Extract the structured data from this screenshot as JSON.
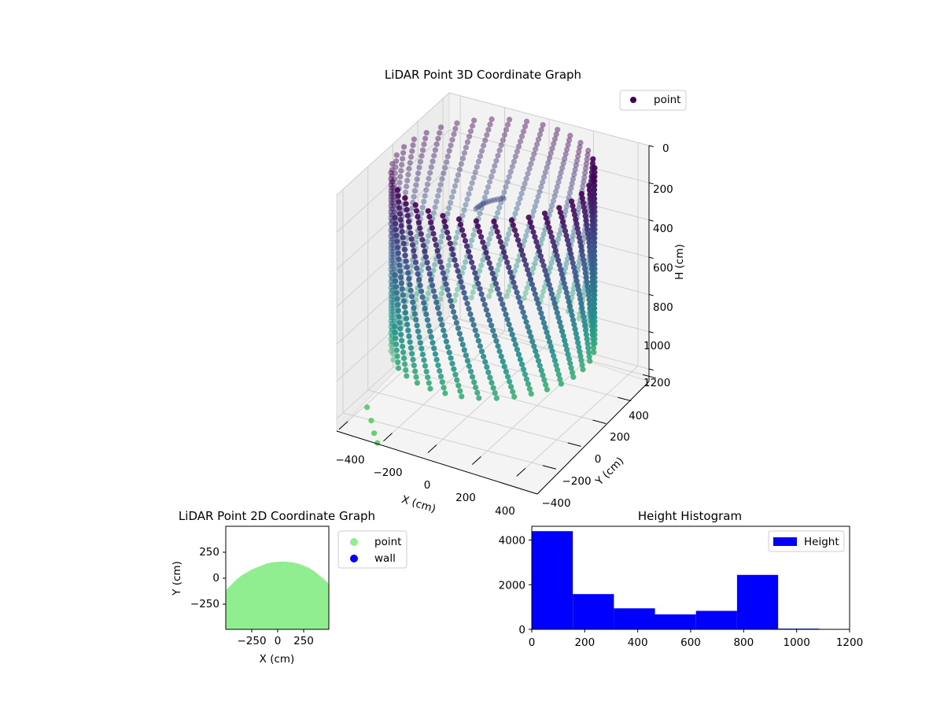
{
  "chart_data": [
    {
      "type": "scatter3d",
      "title": "LiDAR Point 3D Coordinate Graph",
      "xlabel": "X (cm)",
      "ylabel": "Y (cm)",
      "zlabel": "H (cm)",
      "xticks": [
        "−400",
        "−200",
        "0",
        "200",
        "400"
      ],
      "yticks": [
        "400",
        "200",
        "0",
        "−200",
        "−400"
      ],
      "zticks": [
        "0",
        "200",
        "400",
        "600",
        "800",
        "1000",
        "1200"
      ],
      "xlim": [
        -450,
        450
      ],
      "ylim": [
        -450,
        450
      ],
      "zlim": [
        0,
        1200
      ],
      "z_inverted": true,
      "colormap": [
        "#440154",
        "#3b528b",
        "#21918c",
        "#5ec962"
      ],
      "legend": {
        "entries": [
          {
            "label": "point",
            "color": "#440154"
          }
        ],
        "position": "top-right"
      },
      "structure": {
        "radius": 400,
        "height_range": [
          0,
          950
        ],
        "scan_rings": 36
      }
    },
    {
      "type": "scatter",
      "title": "LiDAR Point 2D Coordinate Graph",
      "xlabel": "X (cm)",
      "ylabel": "Y (cm)",
      "xticks": [
        "−250",
        "0",
        "250"
      ],
      "yticks": [
        "250",
        "0",
        "−250"
      ],
      "xlim": [
        -500,
        500
      ],
      "ylim": [
        -500,
        500
      ],
      "series": [
        {
          "name": "point",
          "color": "#90ee90"
        },
        {
          "name": "wall",
          "color": "#0000ff"
        }
      ],
      "outline_x": [
        -500,
        -450,
        -400,
        -350,
        -300,
        -250,
        -200,
        -150,
        -100,
        -50,
        0,
        50,
        100,
        150,
        200,
        250,
        300,
        350,
        400,
        450,
        500
      ],
      "outline_y": [
        -120,
        -70,
        -20,
        20,
        50,
        80,
        100,
        120,
        140,
        150,
        155,
        158,
        155,
        150,
        140,
        120,
        100,
        70,
        30,
        -10,
        -60
      ],
      "legend_position": "outside-right"
    },
    {
      "type": "bar",
      "title": "Height Histogram",
      "series_name": "Height",
      "color": "#0000ff",
      "bin_edges": [
        0,
        155,
        310,
        465,
        620,
        775,
        930,
        1085
      ],
      "values": [
        4400,
        1580,
        940,
        670,
        830,
        2440,
        30
      ],
      "xticks": [
        "0",
        "200",
        "400",
        "600",
        "800",
        "1000",
        "1200"
      ],
      "yticks": [
        "0",
        "2000",
        "4000"
      ],
      "xlim": [
        0,
        1200
      ],
      "ylim": [
        0,
        4620
      ],
      "legend_position": "top-right"
    }
  ]
}
